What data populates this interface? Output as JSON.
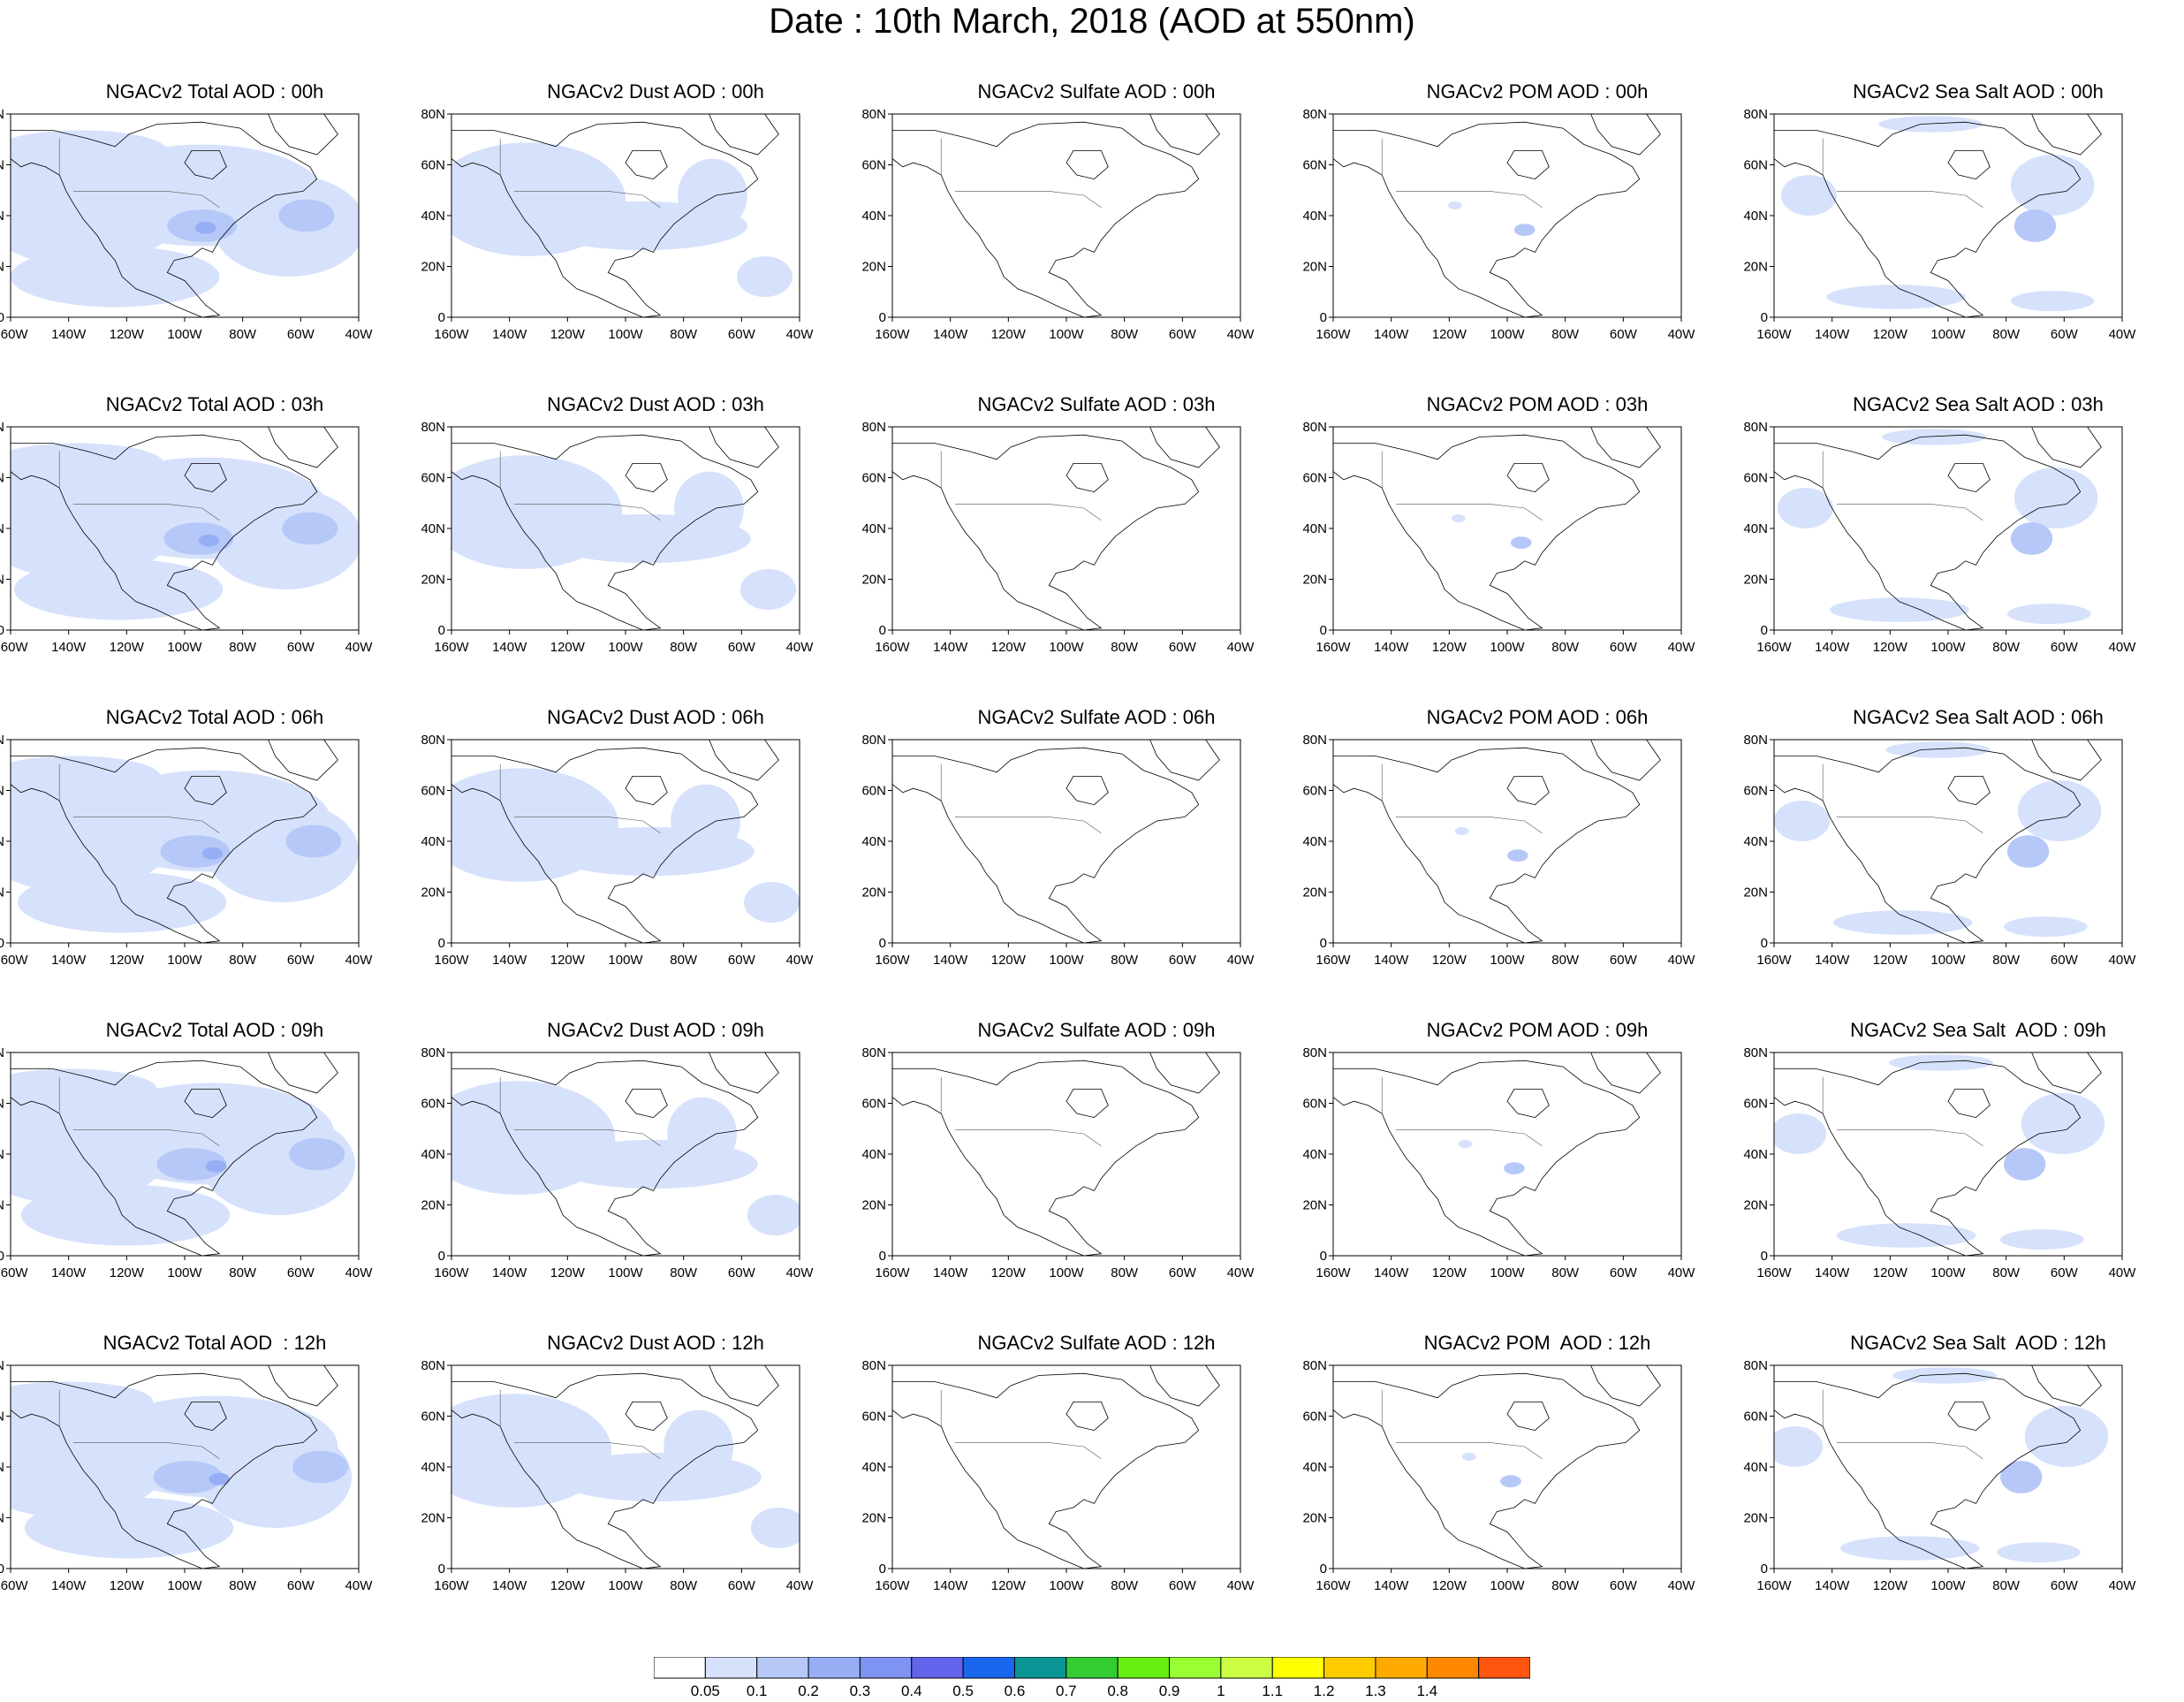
{
  "title": "Date : 10th March, 2018 (AOD at 550nm)",
  "lat_labels": [
    "80N",
    "60N",
    "40N",
    "20N",
    "0"
  ],
  "lon_labels": [
    "160W",
    "140W",
    "120W",
    "100W",
    "80W",
    "60W",
    "40W"
  ],
  "panels": [
    [
      "NGACv2 Total AOD : 00h",
      "NGACv2 Dust AOD : 00h",
      "NGACv2 Sulfate AOD : 00h",
      "NGACv2 POM AOD : 00h",
      "NGACv2 Sea Salt AOD : 00h"
    ],
    [
      "NGACv2 Total AOD : 03h",
      "NGACv2 Dust AOD : 03h",
      "NGACv2 Sulfate AOD : 03h",
      "NGACv2 POM AOD : 03h",
      "NGACv2 Sea Salt AOD : 03h"
    ],
    [
      "NGACv2 Total AOD : 06h",
      "NGACv2 Dust AOD : 06h",
      "NGACv2 Sulfate AOD : 06h",
      "NGACv2 POM AOD : 06h",
      "NGACv2 Sea Salt AOD : 06h"
    ],
    [
      "NGACv2 Total AOD : 09h",
      "NGACv2 Dust AOD : 09h",
      "NGACv2 Sulfate AOD : 09h",
      "NGACv2 POM AOD : 09h",
      "NGACv2 Sea Salt  AOD : 09h"
    ],
    [
      "NGACv2 Total AOD  : 12h",
      "NGACv2 Dust AOD : 12h",
      "NGACv2 Sulfate AOD : 12h",
      "NGACv2 POM  AOD : 12h",
      "NGACv2 Sea Salt  AOD : 12h"
    ]
  ],
  "colorbar": {
    "colors": [
      "#ffffff",
      "#d6e2fb",
      "#b6c8f8",
      "#97aef5",
      "#7f93f2",
      "#6363ec",
      "#1a66ee",
      "#0b9595",
      "#33cc33",
      "#66ee11",
      "#99ff33",
      "#ccff44",
      "#ffff00",
      "#ffcc00",
      "#ffaa00",
      "#ff8800",
      "#ff5511"
    ],
    "labels": [
      "0.05",
      "0.1",
      "0.2",
      "0.3",
      "0.4",
      "0.5",
      "0.6",
      "0.7",
      "0.8",
      "0.9",
      "1",
      "1.1",
      "1.2",
      "1.3",
      "1.4"
    ]
  },
  "colors": {
    "coastline": "#000000",
    "aod_light": "#d6e2fb",
    "aod_mid": "#b6c8f8",
    "aod_high": "#97aef5"
  }
}
